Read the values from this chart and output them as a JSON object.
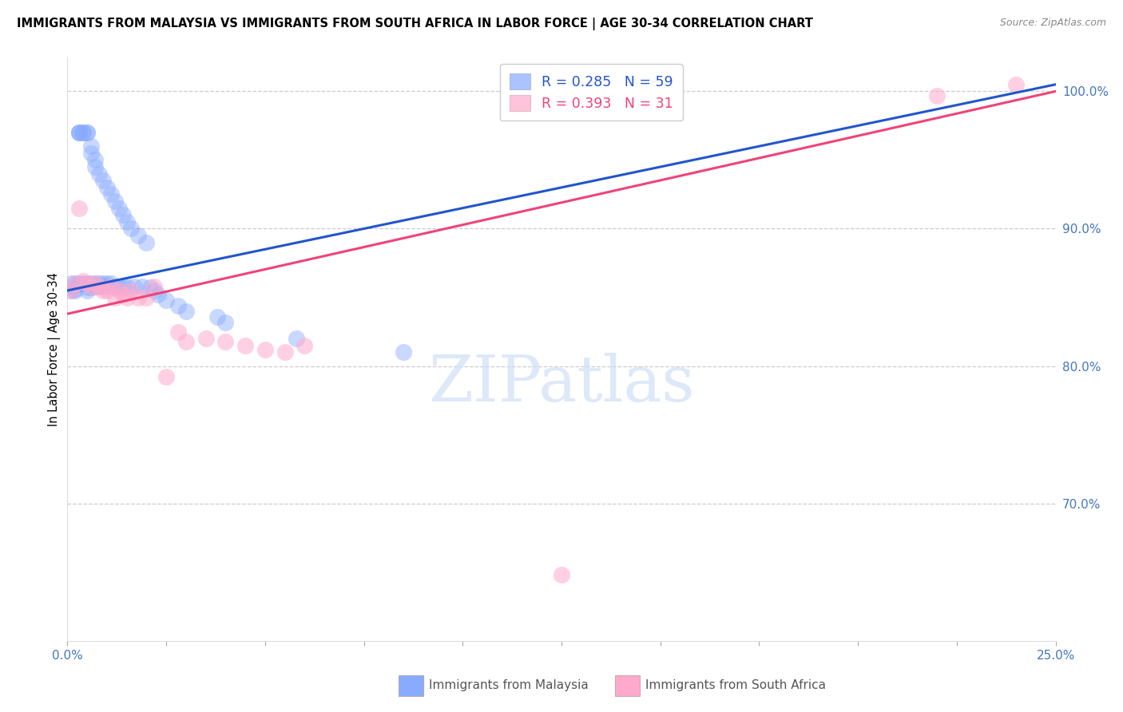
{
  "title": "IMMIGRANTS FROM MALAYSIA VS IMMIGRANTS FROM SOUTH AFRICA IN LABOR FORCE | AGE 30-34 CORRELATION CHART",
  "source": "Source: ZipAtlas.com",
  "ylabel": "In Labor Force | Age 30-34",
  "xlim": [
    0.0,
    0.25
  ],
  "ylim": [
    0.6,
    1.025
  ],
  "ytick_positions": [
    0.7,
    0.8,
    0.9,
    1.0
  ],
  "ytick_labels": [
    "70.0%",
    "80.0%",
    "90.0%",
    "100.0%"
  ],
  "malaysia_color": "#88aaff",
  "south_africa_color": "#ffaacc",
  "malaysia_line_color": "#2255cc",
  "south_africa_line_color": "#ee4477",
  "malaysia_R": 0.285,
  "malaysia_N": 59,
  "south_africa_R": 0.393,
  "south_africa_N": 31,
  "malaysia_x": [
    0.001,
    0.001,
    0.002,
    0.002,
    0.002,
    0.003,
    0.003,
    0.003,
    0.003,
    0.004,
    0.004,
    0.004,
    0.005,
    0.005,
    0.005,
    0.005,
    0.005,
    0.006,
    0.006,
    0.006,
    0.006,
    0.007,
    0.007,
    0.007,
    0.007,
    0.008,
    0.008,
    0.008,
    0.009,
    0.009,
    0.009,
    0.01,
    0.01,
    0.01,
    0.011,
    0.011,
    0.012,
    0.012,
    0.013,
    0.013,
    0.014,
    0.014,
    0.015,
    0.015,
    0.016,
    0.017,
    0.018,
    0.019,
    0.02,
    0.021,
    0.022,
    0.023,
    0.025,
    0.028,
    0.03,
    0.038,
    0.04,
    0.058,
    0.085
  ],
  "malaysia_y": [
    0.86,
    0.855,
    0.86,
    0.855,
    0.856,
    0.97,
    0.97,
    0.97,
    0.86,
    0.97,
    0.97,
    0.86,
    0.97,
    0.97,
    0.86,
    0.857,
    0.855,
    0.96,
    0.955,
    0.86,
    0.857,
    0.95,
    0.945,
    0.86,
    0.858,
    0.94,
    0.86,
    0.858,
    0.935,
    0.86,
    0.858,
    0.93,
    0.86,
    0.858,
    0.925,
    0.86,
    0.92,
    0.858,
    0.915,
    0.858,
    0.91,
    0.858,
    0.905,
    0.858,
    0.9,
    0.858,
    0.895,
    0.858,
    0.89,
    0.857,
    0.855,
    0.852,
    0.848,
    0.844,
    0.84,
    0.836,
    0.832,
    0.82,
    0.81
  ],
  "south_africa_x": [
    0.001,
    0.002,
    0.003,
    0.004,
    0.005,
    0.006,
    0.007,
    0.008,
    0.009,
    0.01,
    0.011,
    0.012,
    0.013,
    0.014,
    0.015,
    0.016,
    0.018,
    0.02,
    0.022,
    0.025,
    0.028,
    0.03,
    0.035,
    0.04,
    0.045,
    0.05,
    0.055,
    0.06,
    0.125,
    0.22,
    0.24
  ],
  "south_africa_y": [
    0.855,
    0.86,
    0.915,
    0.862,
    0.86,
    0.858,
    0.86,
    0.858,
    0.855,
    0.855,
    0.858,
    0.85,
    0.855,
    0.852,
    0.85,
    0.855,
    0.85,
    0.85,
    0.858,
    0.792,
    0.825,
    0.818,
    0.82,
    0.818,
    0.815,
    0.812,
    0.81,
    0.815,
    0.648,
    0.997,
    1.005
  ]
}
